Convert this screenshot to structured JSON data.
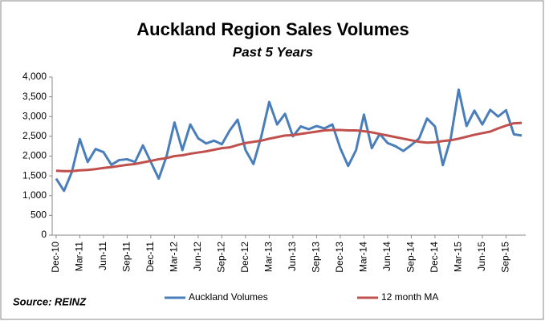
{
  "chart_data": {
    "type": "line",
    "title": "Auckland Region Sales Volumes",
    "subtitle": "Past 5 Years",
    "source": "Source: REINZ",
    "categories": [
      "Dec-10",
      null,
      null,
      "Mar-11",
      null,
      null,
      "Jun-11",
      null,
      null,
      "Sep-11",
      null,
      null,
      "Dec-11",
      null,
      null,
      "Mar-12",
      null,
      null,
      "Jun-12",
      null,
      null,
      "Sep-12",
      null,
      null,
      "Dec-12",
      null,
      null,
      "Mar-13",
      null,
      null,
      "Jun-13",
      null,
      null,
      "Sep-13",
      null,
      null,
      "Dec-13",
      null,
      null,
      "Mar-14",
      null,
      null,
      "Jun-14",
      null,
      null,
      "Sep-14",
      null,
      null,
      "Dec-14",
      null,
      null,
      "Mar-15",
      null,
      null,
      "Jun-15",
      null,
      null,
      "Sep-15",
      null,
      null
    ],
    "series": [
      {
        "name": "Auckland Volumes",
        "color": "#4a7ebb",
        "values": [
          1430,
          1120,
          1600,
          2430,
          1850,
          2180,
          2100,
          1780,
          1900,
          1920,
          1850,
          2270,
          1850,
          1430,
          2000,
          2850,
          2150,
          2800,
          2450,
          2320,
          2390,
          2300,
          2650,
          2920,
          2150,
          1800,
          2500,
          3370,
          2800,
          3070,
          2500,
          2750,
          2680,
          2760,
          2700,
          2800,
          2200,
          1750,
          2150,
          3050,
          2200,
          2560,
          2330,
          2250,
          2130,
          2280,
          2450,
          2950,
          2750,
          1770,
          2450,
          3680,
          2760,
          3150,
          2800,
          3170,
          3000,
          3160,
          2550,
          2520
        ]
      },
      {
        "name": "12 month MA",
        "color": "#c0504d",
        "values": [
          1630,
          1620,
          1620,
          1640,
          1650,
          1670,
          1700,
          1720,
          1750,
          1780,
          1800,
          1840,
          1880,
          1920,
          1950,
          2000,
          2020,
          2060,
          2090,
          2120,
          2160,
          2200,
          2220,
          2280,
          2330,
          2360,
          2390,
          2440,
          2480,
          2520,
          2530,
          2560,
          2590,
          2620,
          2650,
          2660,
          2660,
          2650,
          2650,
          2630,
          2600,
          2560,
          2520,
          2480,
          2440,
          2400,
          2360,
          2340,
          2350,
          2380,
          2400,
          2440,
          2490,
          2540,
          2580,
          2620,
          2700,
          2770,
          2830,
          2840
        ]
      }
    ],
    "ylim": [
      0,
      4000
    ],
    "yticks": [
      0,
      500,
      {
        "value": 1000,
        "label": "1,000"
      },
      {
        "value": 1500,
        "label": "1,500"
      },
      {
        "value": 2000,
        "label": "2,000"
      },
      {
        "value": 2500,
        "label": "2,500"
      },
      {
        "value": 3000,
        "label": "3,000"
      },
      {
        "value": 3500,
        "label": "3,500"
      },
      {
        "value": 4000,
        "label": "4,000"
      }
    ],
    "grid": false
  }
}
